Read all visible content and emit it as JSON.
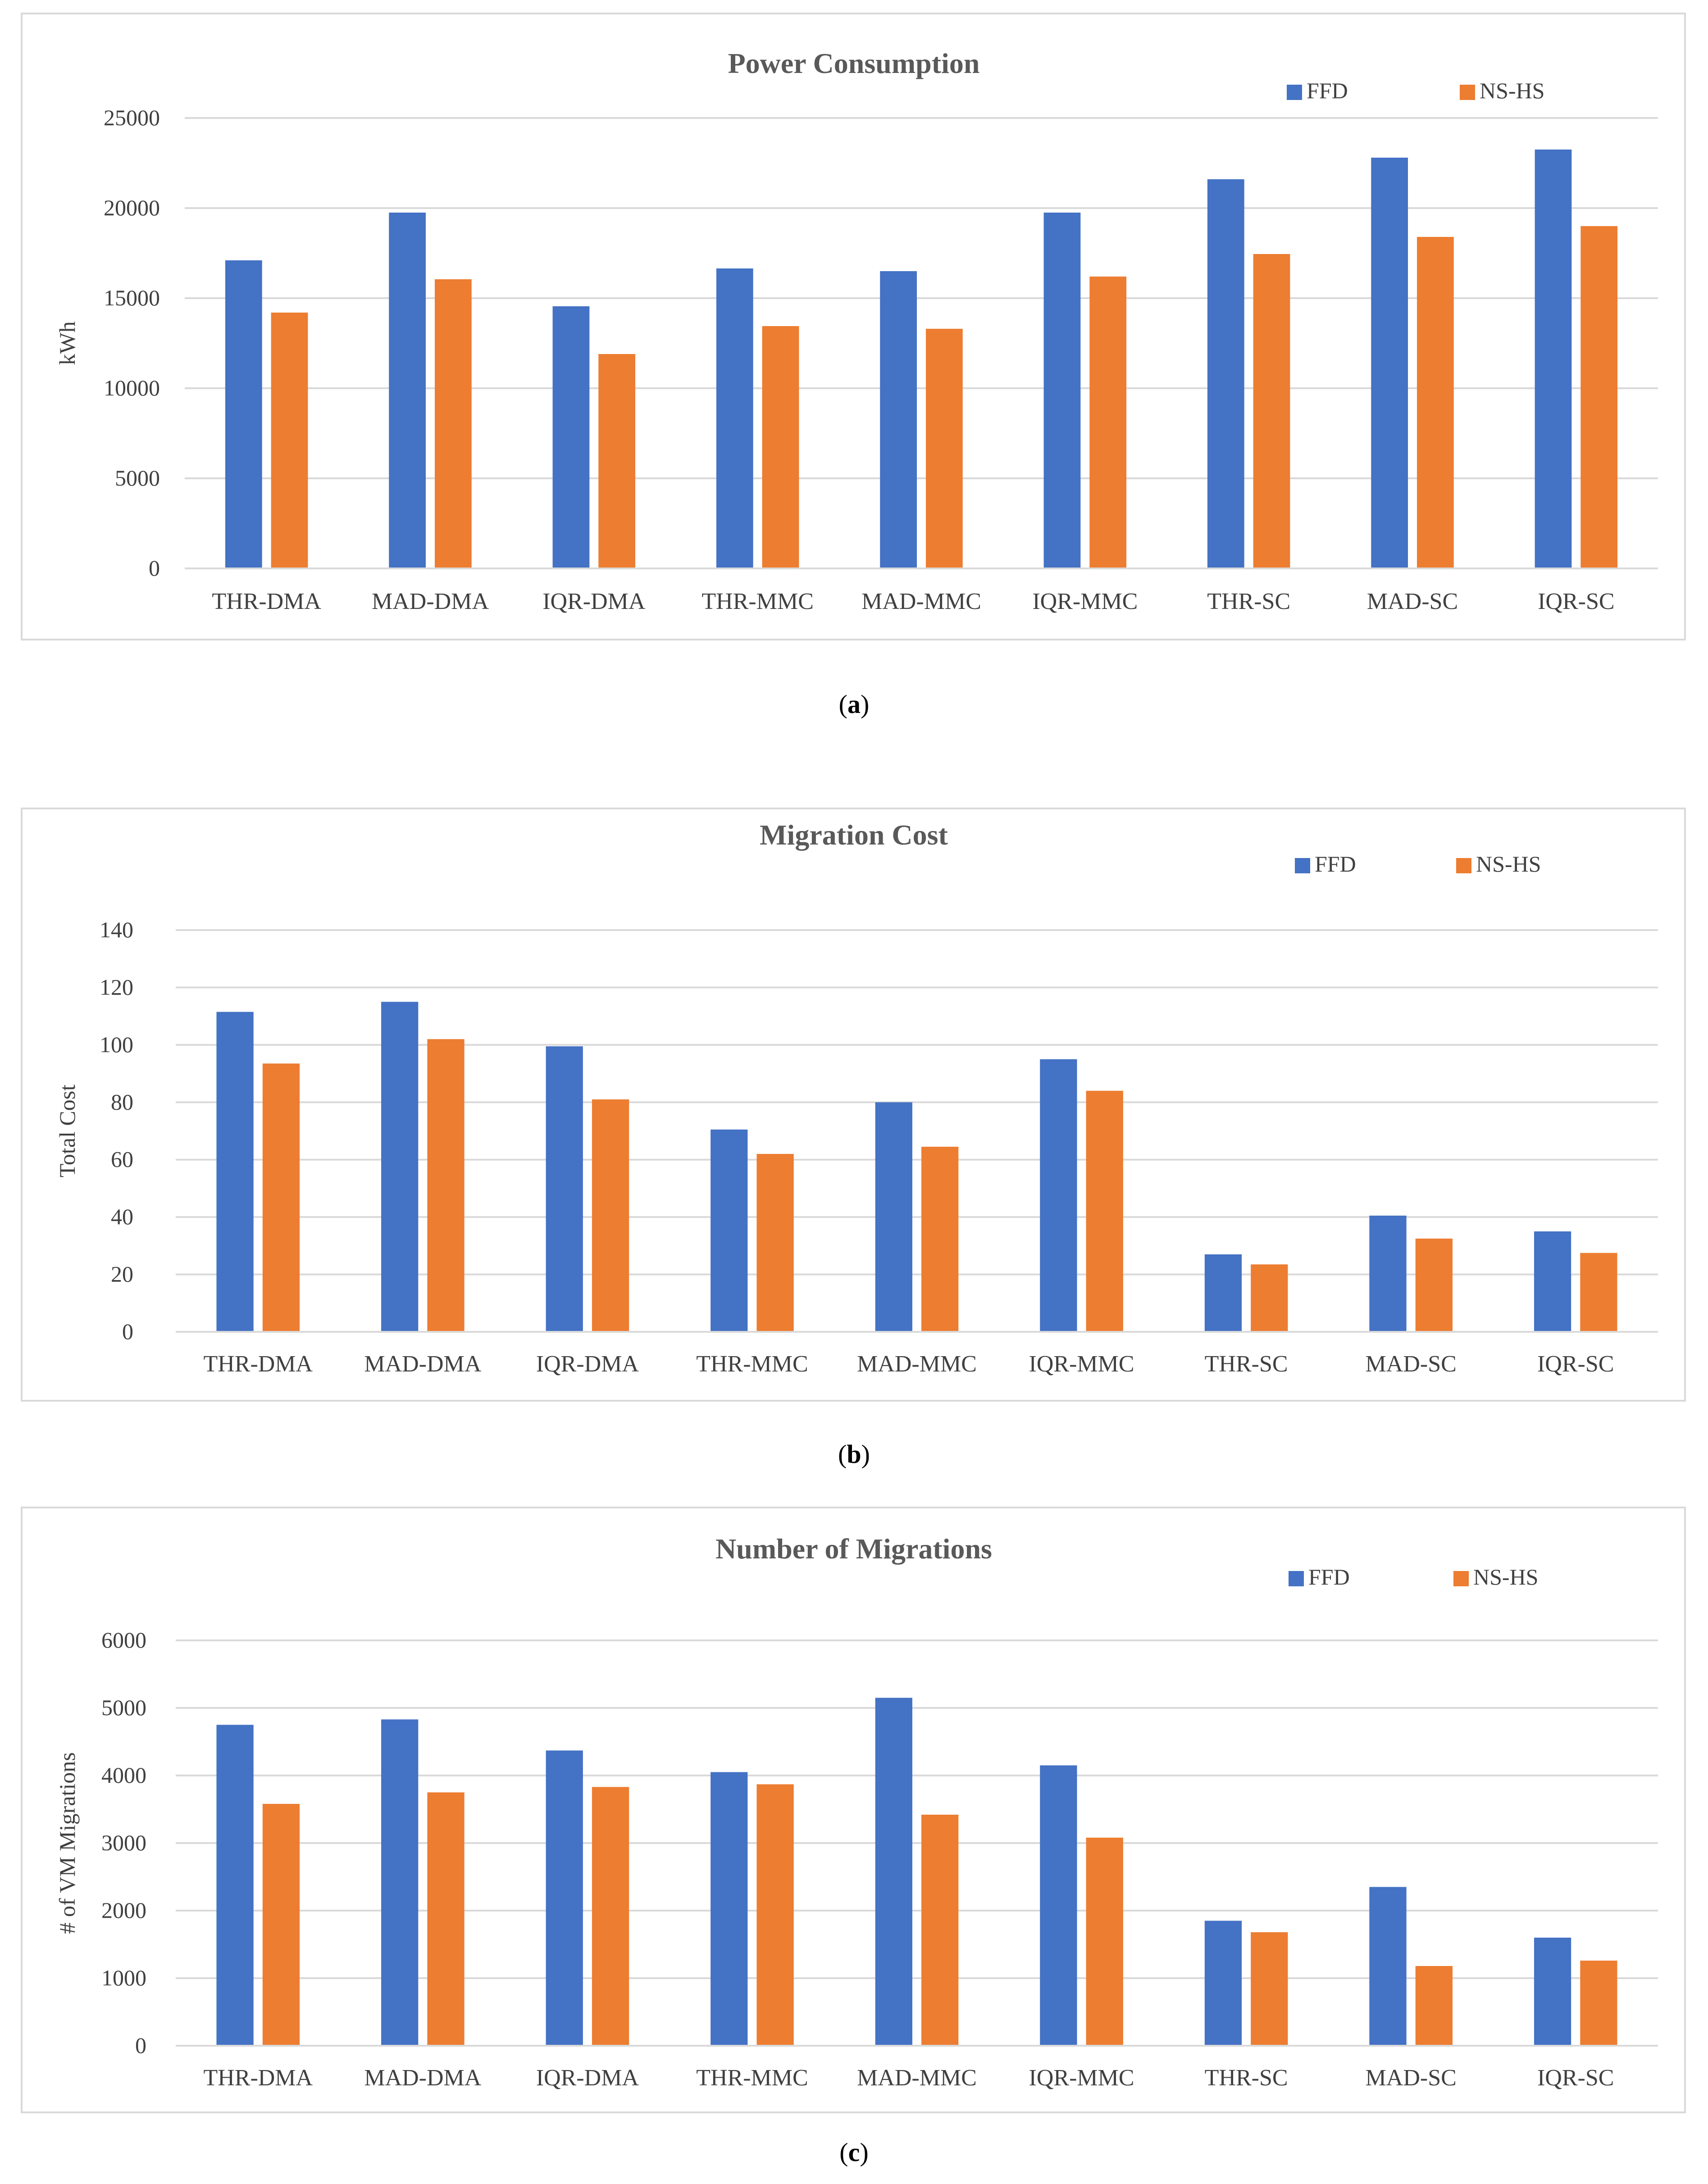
{
  "chart_data": [
    {
      "type": "bar",
      "title": "Power Consumption",
      "ylabel": "kWh",
      "xlabel": "",
      "ylim": [
        0,
        25000
      ],
      "yticks": [
        "0",
        "5000",
        "10000",
        "15000",
        "20000",
        "25000"
      ],
      "categories": [
        "THR-DMA",
        "MAD-DMA",
        "IQR-DMA",
        "THR-MMC",
        "MAD-MMC",
        "IQR-MMC",
        "THR-SC",
        "MAD-SC",
        "IQR-SC"
      ],
      "series": [
        {
          "name": "FFD",
          "color": "#4472C4",
          "values": [
            17100,
            19750,
            14550,
            16650,
            16500,
            19750,
            21600,
            22800,
            23250
          ]
        },
        {
          "name": "NS-HS",
          "color": "#ED7D31",
          "values": [
            14200,
            16050,
            11900,
            13450,
            13300,
            16200,
            17450,
            18400,
            19000
          ]
        }
      ],
      "legend": "top-right",
      "grid": true,
      "caption_letter": "a"
    },
    {
      "type": "bar",
      "title": "Migration Cost",
      "ylabel": "Total Cost",
      "xlabel": "",
      "ylim": [
        0,
        140
      ],
      "yticks": [
        "0",
        "20",
        "40",
        "60",
        "80",
        "100",
        "120",
        "140"
      ],
      "categories": [
        "THR-DMA",
        "MAD-DMA",
        "IQR-DMA",
        "THR-MMC",
        "MAD-MMC",
        "IQR-MMC",
        "THR-SC",
        "MAD-SC",
        "IQR-SC"
      ],
      "series": [
        {
          "name": "FFD",
          "color": "#4472C4",
          "values": [
            111.5,
            115,
            99.5,
            70.5,
            80,
            95,
            27,
            40.5,
            35
          ]
        },
        {
          "name": "NS-HS",
          "color": "#ED7D31",
          "values": [
            93.5,
            102,
            81,
            62,
            64.5,
            84,
            23.5,
            32.5,
            27.5
          ]
        }
      ],
      "legend": "top-right",
      "grid": true,
      "caption_letter": "b"
    },
    {
      "type": "bar",
      "title": "Number of Migrations",
      "ylabel": "# of VM Migrations",
      "xlabel": "",
      "ylim": [
        0,
        6000
      ],
      "yticks": [
        "0",
        "1000",
        "2000",
        "3000",
        "4000",
        "5000",
        "6000"
      ],
      "categories": [
        "THR-DMA",
        "MAD-DMA",
        "IQR-DMA",
        "THR-MMC",
        "MAD-MMC",
        "IQR-MMC",
        "THR-SC",
        "MAD-SC",
        "IQR-SC"
      ],
      "series": [
        {
          "name": "FFD",
          "color": "#4472C4",
          "values": [
            4750,
            4830,
            4370,
            4050,
            5150,
            4150,
            1850,
            2350,
            1600
          ]
        },
        {
          "name": "NS-HS",
          "color": "#ED7D31",
          "values": [
            3580,
            3750,
            3830,
            3870,
            3420,
            3080,
            1680,
            1180,
            1260
          ]
        }
      ],
      "legend": "top-right",
      "grid": true,
      "caption_letter": "c"
    }
  ]
}
